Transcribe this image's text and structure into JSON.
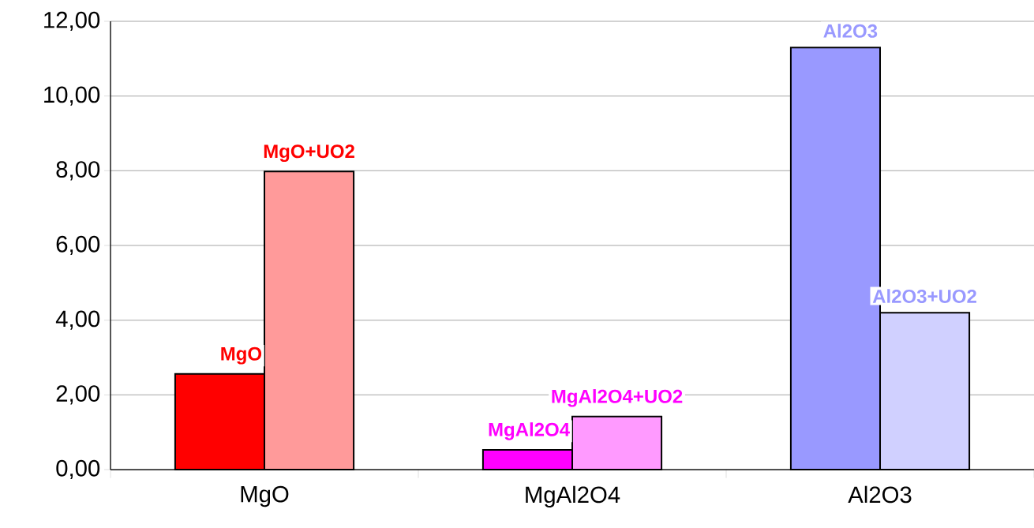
{
  "chart_data": {
    "type": "bar",
    "categories": [
      "MgO",
      "MgAl2O4",
      "Al2O3"
    ],
    "series": [
      {
        "colors": [
          "#ff0000",
          "#ff00ff",
          "#9999ff"
        ],
        "values": [
          2.56,
          0.53,
          11.3
        ],
        "value_labels": [
          "MgO",
          "MgAl2O4",
          "Al2O3"
        ]
      },
      {
        "colors": [
          "#ff9a9a",
          "#ff9aff",
          "#d0d0ff"
        ],
        "values": [
          7.98,
          1.42,
          4.2
        ],
        "value_labels": [
          "MgO+UO2",
          "MgAl2O4+UO2",
          "Al2O3+UO2"
        ]
      }
    ],
    "ylim": [
      0,
      12
    ],
    "yticks": [
      {
        "value": 0,
        "label": "0,00"
      },
      {
        "value": 2,
        "label": "2,00"
      },
      {
        "value": 4,
        "label": "4,00"
      },
      {
        "value": 6,
        "label": "6,00"
      },
      {
        "value": 8,
        "label": "8,00"
      },
      {
        "value": 10,
        "label": "10,00"
      },
      {
        "value": 12,
        "label": "12,00"
      }
    ],
    "grid": "y"
  }
}
